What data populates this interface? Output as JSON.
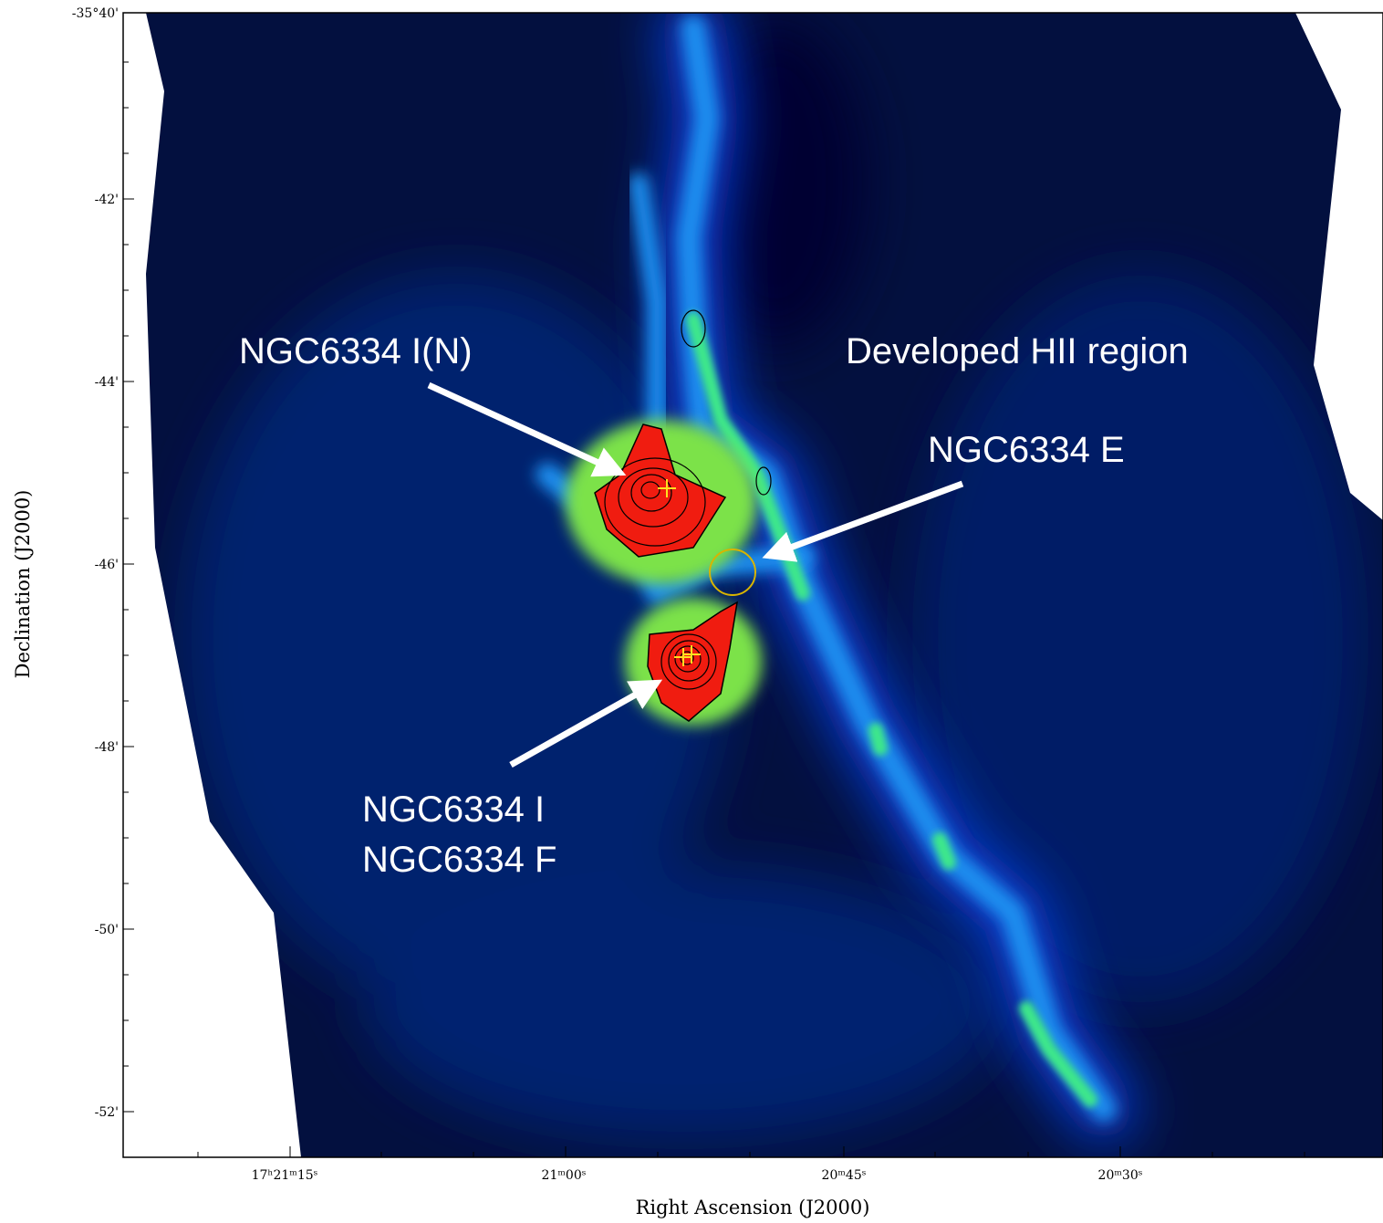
{
  "axes": {
    "x_label": "Right Ascension (J2000)",
    "y_label": "Declination (J2000)",
    "x_ticks": [
      "17ʰ21ᵐ15ˢ",
      "21ᵐ00ˢ",
      "20ᵐ45ˢ",
      "20ᵐ30ˢ"
    ],
    "y_ticks": [
      "-35°40'",
      "-42'",
      "-44'",
      "-46'",
      "-48'",
      "-50'",
      "-52'"
    ]
  },
  "annotations": [
    "NGC6334 I(N)",
    "Developed HII region",
    "NGC6334 E",
    "NGC6334 I",
    "NGC6334 F"
  ]
}
